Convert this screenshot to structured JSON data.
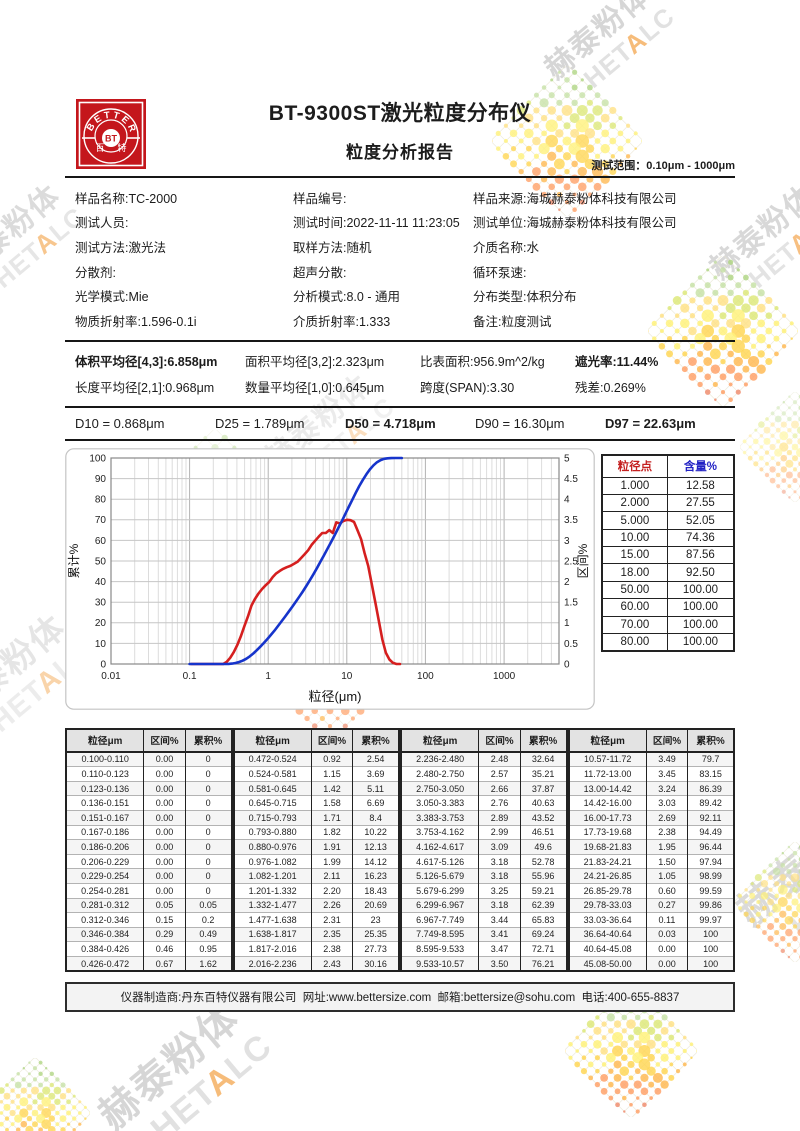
{
  "header": {
    "title": "BT-9300ST激光粒度分布仪",
    "subtitle": "粒度分析报告",
    "test_range": "测试范围：0.10μm - 1000μm",
    "logo": {
      "arc_text": "BETTER",
      "center_text": "BT",
      "left_char": "百",
      "right_char": "特",
      "color": "#c4161c"
    }
  },
  "info_rows": [
    [
      "样品名称:TC-2000",
      "样品编号:",
      "样品来源:海城赫泰粉体科技有限公司"
    ],
    [
      "测试人员:",
      "测试时间:2022-11-11 11:23:05",
      "测试单位:海城赫泰粉体科技有限公司"
    ],
    [
      "测试方法:激光法",
      "取样方法:随机",
      "介质名称:水"
    ],
    [
      "分散剂:",
      "超声分散:",
      "循环泵速:"
    ],
    [
      "光学模式:Mie",
      "分析模式:8.0 - 通用",
      "分布类型:体积分布"
    ],
    [
      "物质折射率:1.596-0.1i",
      "介质折射率:1.333",
      "备注:粒度测试"
    ]
  ],
  "averages_rows": [
    [
      {
        "text": "体积平均径[4,3]:6.858μm",
        "bold": true
      },
      {
        "text": "面积平均径[3,2]:2.323μm",
        "bold": false
      },
      {
        "text": "比表面积:956.9m^2/kg",
        "bold": false
      },
      {
        "text": "遮光率:11.44%",
        "bold": true
      }
    ],
    [
      {
        "text": "长度平均径[2,1]:0.968μm",
        "bold": false
      },
      {
        "text": "数量平均径[1,0]:0.645μm",
        "bold": false
      },
      {
        "text": "跨度(SPAN):3.30",
        "bold": false
      },
      {
        "text": "残差:0.269%",
        "bold": false
      }
    ]
  ],
  "d_values": [
    {
      "text": "D10 = 0.868μm",
      "bold": false
    },
    {
      "text": "D25 = 1.789μm",
      "bold": false
    },
    {
      "text": "D50 = 4.718μm",
      "bold": true
    },
    {
      "text": "D90 = 16.30μm",
      "bold": false
    },
    {
      "text": "D97 = 22.63μm",
      "bold": true
    }
  ],
  "chart_data": {
    "type": "line",
    "title": "",
    "xlabel": "粒径(μm)",
    "ylabel_left": "累计%",
    "ylabel_right": "区间%",
    "x_scale": "log",
    "xlim": [
      0.01,
      5000
    ],
    "xticks": [
      0.01,
      0.1,
      1,
      10,
      100,
      1000
    ],
    "ylim_left": [
      0,
      100
    ],
    "yticks_left": [
      0,
      10,
      20,
      30,
      40,
      50,
      60,
      70,
      80,
      90,
      100
    ],
    "ylim_right": [
      0,
      5
    ],
    "yticks_right": [
      0,
      0.5,
      1,
      1.5,
      2,
      2.5,
      3,
      3.5,
      4,
      4.5,
      5
    ],
    "grid": true,
    "series": [
      {
        "name": "累计%",
        "axis": "left",
        "color": "#1634cb"
      },
      {
        "name": "区间%",
        "axis": "right",
        "color": "#d51f1f"
      }
    ],
    "bin_edges": [
      0.1,
      0.11,
      0.123,
      0.136,
      0.151,
      0.167,
      0.186,
      0.206,
      0.229,
      0.254,
      0.281,
      0.312,
      0.346,
      0.384,
      0.426,
      0.472,
      0.524,
      0.581,
      0.645,
      0.715,
      0.793,
      0.88,
      0.976,
      1.082,
      1.201,
      1.332,
      1.477,
      1.638,
      1.817,
      2.016,
      2.236,
      2.48,
      2.75,
      3.05,
      3.383,
      3.753,
      4.162,
      4.617,
      5.126,
      5.679,
      6.299,
      6.967,
      7.749,
      8.595,
      9.533,
      10.57,
      11.72,
      13.0,
      14.42,
      16.0,
      17.73,
      19.68,
      21.83,
      24.21,
      26.85,
      29.78,
      33.03,
      36.64,
      40.64,
      45.08,
      50.0
    ],
    "interval_pct": [
      0.0,
      0.0,
      0.0,
      0.0,
      0.0,
      0.0,
      0.0,
      0.0,
      0.0,
      0.0,
      0.05,
      0.15,
      0.29,
      0.46,
      0.67,
      0.92,
      1.15,
      1.42,
      1.58,
      1.71,
      1.82,
      1.91,
      1.99,
      2.11,
      2.2,
      2.26,
      2.31,
      2.35,
      2.38,
      2.43,
      2.48,
      2.57,
      2.66,
      2.76,
      2.89,
      2.99,
      3.09,
      3.18,
      3.18,
      3.25,
      3.18,
      3.44,
      3.41,
      3.47,
      3.5,
      3.49,
      3.45,
      3.24,
      3.03,
      2.69,
      2.38,
      1.95,
      1.5,
      1.05,
      0.6,
      0.27,
      0.11,
      0.03,
      0.0,
      0.0
    ],
    "cumulative_pct": [
      0,
      0,
      0,
      0,
      0,
      0,
      0,
      0,
      0,
      0,
      0.05,
      0.2,
      0.49,
      0.95,
      1.62,
      2.54,
      3.69,
      5.11,
      6.69,
      8.4,
      10.22,
      12.13,
      14.12,
      16.23,
      18.43,
      20.69,
      23,
      25.35,
      27.73,
      30.16,
      32.64,
      35.21,
      37.87,
      40.63,
      43.52,
      46.51,
      49.6,
      52.78,
      55.96,
      59.21,
      62.39,
      65.83,
      69.24,
      72.71,
      76.21,
      79.7,
      83.15,
      86.39,
      89.42,
      92.11,
      94.49,
      96.44,
      97.94,
      98.99,
      99.59,
      99.86,
      99.97,
      100,
      100,
      100
    ]
  },
  "percentile_table": {
    "headers": [
      "粒径点",
      "含量%"
    ],
    "header_colors": [
      "#c42020",
      "#2121c4"
    ],
    "rows": [
      [
        "1.000",
        "12.58"
      ],
      [
        "2.000",
        "27.55"
      ],
      [
        "5.000",
        "52.05"
      ],
      [
        "10.00",
        "74.36"
      ],
      [
        "15.00",
        "87.56"
      ],
      [
        "18.00",
        "92.50"
      ],
      [
        "50.00",
        "100.00"
      ],
      [
        "60.00",
        "100.00"
      ],
      [
        "70.00",
        "100.00"
      ],
      [
        "80.00",
        "100.00"
      ]
    ]
  },
  "distribution_table": {
    "headers": [
      "粒径μm",
      "区间%",
      "累积%"
    ],
    "groups": 4,
    "rows_per_group": 15
  },
  "footer": {
    "text": "仪器制造商:丹东百特仪器有限公司  网址:www.bettersize.com  邮箱:bettersize@sohu.com  电话:400-655-8837"
  },
  "watermark": {
    "cn": "赫泰粉体",
    "en": "HETALC"
  }
}
